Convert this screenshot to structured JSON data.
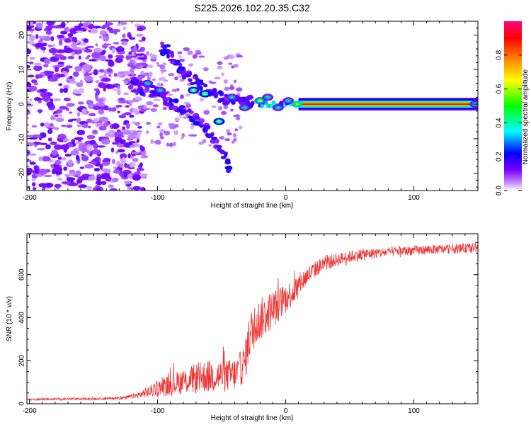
{
  "title": "S225.2026.102.20.35.C32",
  "chart_data": [
    {
      "type": "heatmap",
      "title": "S225.2026.102.20.35.C32",
      "xlabel": "Height of straight line (km)",
      "ylabel": "Frequency (Hz)",
      "xlim": [
        -202,
        150
      ],
      "ylim": [
        -25,
        24
      ],
      "xticks": [
        -200,
        -100,
        0,
        100
      ],
      "xtick_labels": [
        "-200",
        "-100",
        "0",
        "100"
      ],
      "yticks": [
        -20,
        -10,
        0,
        10,
        20
      ],
      "ytick_labels": [
        "-20",
        "-10",
        "0",
        "10",
        "20"
      ],
      "colorbar": {
        "label": "Normalized spectral amplitude",
        "range": [
          0,
          1
        ],
        "ticks": [
          0.0,
          0.2,
          0.4,
          0.6,
          0.8
        ],
        "tick_labels": [
          "0.0",
          "0.2",
          "0.4",
          "0.6",
          "0.8"
        ],
        "colormap": [
          "#ffffff",
          "#cc99ff",
          "#7a00ff",
          "#0000ff",
          "#00ffff",
          "#00ff00",
          "#ffff00",
          "#ff8000",
          "#ff0000",
          "#ff0080"
        ]
      },
      "features": {
        "strong_line": {
          "x_start": 10,
          "x_end": 150,
          "freq": 0,
          "amplitude": 0.9
        },
        "line_start": {
          "x_start": -20,
          "x_end": 10,
          "freq": 0,
          "amplitude": 0.6
        },
        "diagonal_band_upper": [
          [
            -98,
            17
          ],
          [
            -80,
            10
          ],
          [
            -62,
            4
          ],
          [
            -45,
            1
          ],
          [
            -25,
            0.5
          ]
        ],
        "diagonal_band_lower": [
          [
            -120,
            6
          ],
          [
            -100,
            3
          ],
          [
            -80,
            -2
          ],
          [
            -60,
            -8
          ],
          [
            -42,
            -19
          ]
        ],
        "bright_blobs": [
          [
            -108,
            6,
            0.3
          ],
          [
            -98,
            4,
            0.3
          ],
          [
            -72,
            4,
            0.4
          ],
          [
            -63,
            3,
            0.4
          ],
          [
            -52,
            -5,
            0.4
          ],
          [
            -42,
            2,
            0.3
          ],
          [
            -32,
            -1,
            0.3
          ],
          [
            -20,
            1,
            0.45
          ],
          [
            -14,
            2,
            0.3
          ],
          [
            -6,
            -1,
            0.3
          ],
          [
            2,
            1,
            0.3
          ],
          [
            9,
            0,
            0.5
          ],
          [
            148,
            0,
            0.3
          ]
        ],
        "noise_region": {
          "x_start": -202,
          "x_end": -120,
          "amplitude": 0.12
        }
      }
    },
    {
      "type": "line",
      "xlabel": "Height of straight line (km)",
      "ylabel": "SNR (10 * v/v)",
      "xlim": [
        -202,
        150
      ],
      "ylim": [
        0,
        790
      ],
      "xticks": [
        -200,
        -100,
        0,
        100
      ],
      "xtick_labels": [
        "-200",
        "-100",
        "0",
        "100"
      ],
      "yticks": [
        0,
        200,
        400,
        600
      ],
      "ytick_labels": [
        "0",
        "200",
        "400",
        "600"
      ],
      "color": "#ee3333",
      "series": [
        {
          "name": "SNR",
          "x": [
            -202,
            -180,
            -160,
            -140,
            -125,
            -115,
            -105,
            -95,
            -85,
            -75,
            -65,
            -55,
            -45,
            -38,
            -32,
            -28,
            -25,
            -22,
            -18,
            -14,
            -10,
            -6,
            -2,
            2,
            6,
            10,
            16,
            22,
            30,
            40,
            55,
            70,
            90,
            110,
            130,
            150
          ],
          "values": [
            20,
            22,
            22,
            24,
            28,
            40,
            60,
            80,
            95,
            110,
            125,
            130,
            130,
            140,
            190,
            320,
            350,
            380,
            400,
            420,
            440,
            460,
            480,
            500,
            520,
            550,
            590,
            620,
            650,
            670,
            690,
            700,
            710,
            715,
            720,
            725
          ],
          "noise": [
            4,
            5,
            5,
            6,
            8,
            15,
            30,
            45,
            55,
            65,
            75,
            80,
            75,
            80,
            90,
            110,
            100,
            100,
            100,
            95,
            90,
            80,
            75,
            70,
            60,
            55,
            45,
            40,
            35,
            30,
            28,
            25,
            22,
            22,
            22,
            22
          ]
        }
      ]
    }
  ]
}
